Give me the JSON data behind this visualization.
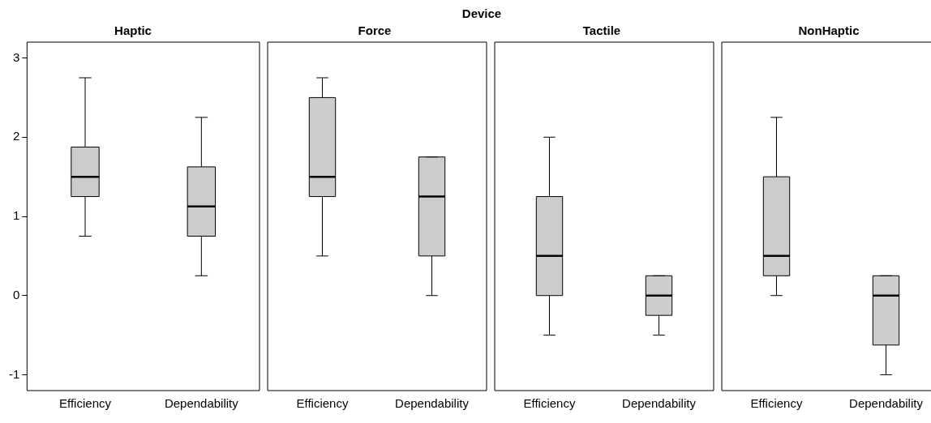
{
  "chart_data": [
    {
      "type": "box",
      "title": "Haptic",
      "annotations": [
        "Device"
      ],
      "categories": [
        "Efficiency",
        "Dependability"
      ],
      "color": "#cccccc",
      "ylim": [
        -1.2,
        3.2
      ],
      "yticks": [
        -1,
        0,
        1,
        2,
        3
      ],
      "grid": false,
      "legend": false,
      "boxes": [
        {
          "low": 0.75,
          "q1": 1.25,
          "median": 1.5,
          "q3": 1.875,
          "high": 2.75
        },
        {
          "low": 0.25,
          "q1": 0.75,
          "median": 1.125,
          "q3": 1.625,
          "high": 2.25
        }
      ]
    },
    {
      "type": "box",
      "title": "Force",
      "categories": [
        "Efficiency",
        "Dependability"
      ],
      "color": "#cccccc",
      "ylim": [
        -1.2,
        3.2
      ],
      "yticks": [
        -1,
        0,
        1,
        2,
        3
      ],
      "tick_labels": "x",
      "grid": false,
      "legend": false,
      "boxes": [
        {
          "low": 0.5,
          "q1": 1.25,
          "median": 1.5,
          "q3": 2.5,
          "high": 2.75
        },
        {
          "low": 0,
          "q1": 0.5,
          "median": 1.25,
          "q3": 1.75,
          "high": 1.75
        }
      ]
    },
    {
      "type": "box",
      "title": "Tactile",
      "categories": [
        "Efficiency",
        "Dependability"
      ],
      "color": "#cccccc",
      "ylim": [
        -1.2,
        3.2
      ],
      "yticks": [
        -1,
        0,
        1,
        2,
        3
      ],
      "tick_labels": "x",
      "grid": false,
      "legend": false,
      "boxes": [
        {
          "low": -0.5,
          "q1": 0,
          "median": 0.5,
          "q3": 1.25,
          "high": 2
        },
        {
          "low": -0.5,
          "q1": -0.25,
          "median": 0,
          "q3": 0.25,
          "high": 0.25
        }
      ]
    },
    {
      "type": "box",
      "title": "NonHaptic",
      "categories": [
        "Efficiency",
        "Dependability"
      ],
      "color": "#cccccc",
      "ylim": [
        -1.2,
        3.2
      ],
      "yticks": [
        -1,
        0,
        1,
        2,
        3
      ],
      "tick_labels": "x",
      "grid": false,
      "legend": false,
      "boxes": [
        {
          "low": 0,
          "q1": 0.25,
          "median": 0.5,
          "q3": 1.5,
          "high": 2.25
        },
        {
          "low": -1,
          "q1": -0.625,
          "median": 0,
          "q3": 0.25,
          "high": 0.25
        }
      ]
    }
  ]
}
